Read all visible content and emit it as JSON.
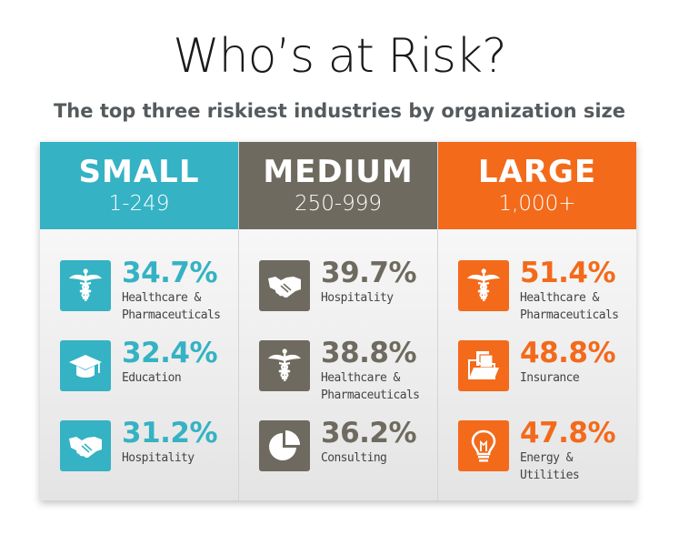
{
  "title": "Who’s at Risk?",
  "subtitle": "The top three riskiest industries by organization size",
  "columns": [
    {
      "label": "SMALL",
      "range": "1-249",
      "color": "#35b2c4",
      "items": [
        {
          "percent": "34.7%",
          "industry": "Healthcare &\nPharmaceuticals",
          "icon": "caduceus-icon"
        },
        {
          "percent": "32.4%",
          "industry": "Education",
          "icon": "graduation-cap-icon"
        },
        {
          "percent": "31.2%",
          "industry": "Hospitality",
          "icon": "handshake-icon"
        }
      ]
    },
    {
      "label": "MEDIUM",
      "range": "250-999",
      "color": "#6e6a5f",
      "items": [
        {
          "percent": "39.7%",
          "industry": "Hospitality",
          "icon": "handshake-icon"
        },
        {
          "percent": "38.8%",
          "industry": "Healthcare &\nPharmaceuticals",
          "icon": "caduceus-icon"
        },
        {
          "percent": "36.2%",
          "industry": "Consulting",
          "icon": "pie-chart-icon"
        }
      ]
    },
    {
      "label": "LARGE",
      "range": "1,000+",
      "color": "#f36a1b",
      "items": [
        {
          "percent": "51.4%",
          "industry": "Healthcare &\nPharmaceuticals",
          "icon": "caduceus-icon"
        },
        {
          "percent": "48.8%",
          "industry": "Insurance",
          "icon": "folder-icon"
        },
        {
          "percent": "47.8%",
          "industry": "Energy & Utilities",
          "icon": "lightbulb-icon"
        }
      ]
    }
  ]
}
